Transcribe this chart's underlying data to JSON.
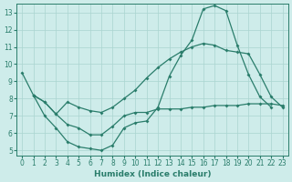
{
  "xlabel": "Humidex (Indice chaleur)",
  "xlim": [
    -0.5,
    23.5
  ],
  "ylim": [
    4.7,
    13.5
  ],
  "xticks": [
    0,
    1,
    2,
    3,
    4,
    5,
    6,
    7,
    8,
    9,
    10,
    11,
    12,
    13,
    14,
    15,
    16,
    17,
    18,
    19,
    20,
    21,
    22,
    23
  ],
  "yticks": [
    5,
    6,
    7,
    8,
    9,
    10,
    11,
    12,
    13
  ],
  "line_color": "#2a7d6b",
  "bg_color": "#ceecea",
  "grid_color": "#aad4d0",
  "line1_x": [
    0,
    1,
    2,
    3,
    4,
    5,
    6,
    7,
    8,
    9,
    10,
    11,
    12,
    13,
    14,
    15,
    16,
    17,
    18,
    19,
    20,
    21,
    22
  ],
  "line1_y": [
    9.5,
    8.2,
    7.0,
    6.3,
    5.5,
    5.2,
    5.1,
    5.0,
    5.3,
    6.3,
    6.6,
    6.7,
    7.5,
    9.3,
    10.5,
    11.4,
    13.2,
    13.4,
    13.1,
    11.1,
    9.4,
    8.1,
    7.5
  ],
  "line2_x": [
    1,
    2,
    3,
    4,
    5,
    6,
    7,
    8,
    9,
    10,
    11,
    12,
    13,
    14,
    15,
    16,
    17,
    18,
    19,
    20,
    21,
    22,
    23
  ],
  "line2_y": [
    8.2,
    7.8,
    7.1,
    7.8,
    7.5,
    7.3,
    7.2,
    7.5,
    8.0,
    8.5,
    9.2,
    9.8,
    10.3,
    10.7,
    11.0,
    11.2,
    11.1,
    10.8,
    10.7,
    10.6,
    9.4,
    8.1,
    7.5
  ],
  "line3_x": [
    1,
    2,
    3,
    4,
    5,
    6,
    7,
    8,
    9,
    10,
    11,
    12,
    13,
    14,
    15,
    16,
    17,
    18,
    19,
    20,
    21,
    22,
    23
  ],
  "line3_y": [
    8.2,
    7.8,
    7.1,
    6.5,
    6.3,
    5.9,
    5.9,
    6.4,
    7.0,
    7.2,
    7.2,
    7.4,
    7.4,
    7.4,
    7.5,
    7.5,
    7.6,
    7.6,
    7.6,
    7.7,
    7.7,
    7.7,
    7.6
  ]
}
